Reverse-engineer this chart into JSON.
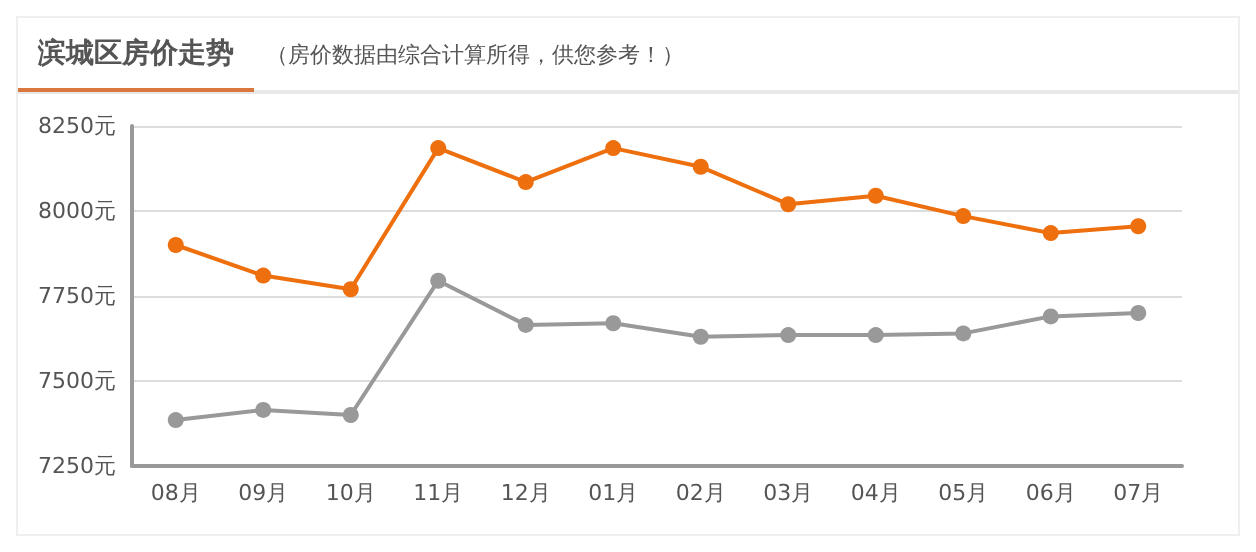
{
  "chart_data": {
    "type": "line",
    "title": "滨城区房价走势",
    "subtitle": "（房价数据由综合计算所得，供您参考！）",
    "categories": [
      "08月",
      "09月",
      "10月",
      "11月",
      "12月",
      "01月",
      "02月",
      "03月",
      "04月",
      "05月",
      "06月",
      "07月"
    ],
    "series": [
      {
        "color": "#ee6f0e",
        "values": [
          7900,
          7810,
          7770,
          8185,
          8085,
          8185,
          8130,
          8020,
          8045,
          7985,
          7935,
          7955
        ]
      },
      {
        "color": "#999999",
        "values": [
          7385,
          7415,
          7400,
          7795,
          7665,
          7670,
          7630,
          7635,
          7635,
          7640,
          7690,
          7700
        ]
      }
    ],
    "ylim": [
      7250,
      8250
    ],
    "yticks": [
      {
        "value": 7250,
        "label": "7250元"
      },
      {
        "value": 7500,
        "label": "7500元"
      },
      {
        "value": 7750,
        "label": "7750元"
      },
      {
        "value": 8000,
        "label": "8000元"
      },
      {
        "value": 8250,
        "label": "8250元"
      }
    ],
    "grid": "y",
    "marker": "circle",
    "line_style": "solid"
  }
}
